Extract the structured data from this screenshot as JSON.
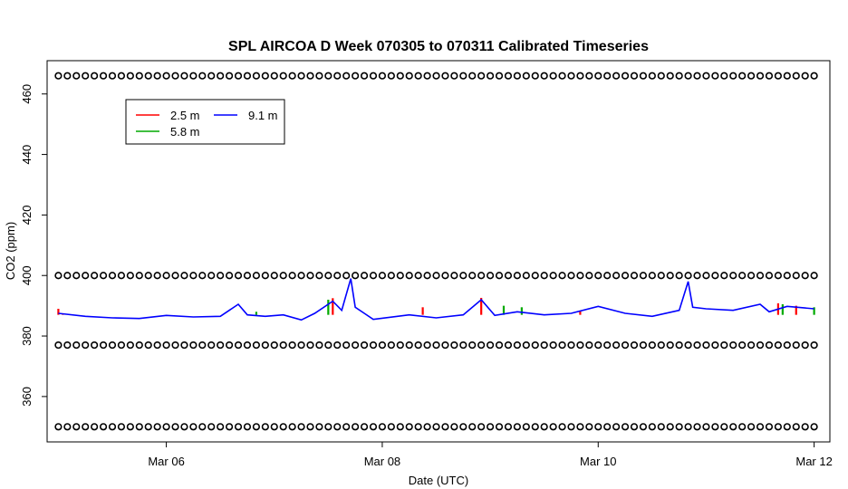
{
  "chart_data": {
    "type": "line",
    "title": "SPL AIRCOA D  Week 070305 to 070311  Calibrated Timeseries",
    "xlabel": "Date (UTC)",
    "ylabel": "CO2 (ppm)",
    "xlim": [
      "2007-03-04T21:30",
      "2007-03-12T03:30"
    ],
    "ylim": [
      345,
      471
    ],
    "xticks": [
      {
        "t": "2007-03-06T00:00",
        "label": "Mar 06"
      },
      {
        "t": "2007-03-08T00:00",
        "label": "Mar 08"
      },
      {
        "t": "2007-03-10T00:00",
        "label": "Mar 10"
      },
      {
        "t": "2007-03-12T00:00",
        "label": "Mar 12"
      }
    ],
    "yticks": [
      360,
      380,
      400,
      420,
      440,
      460
    ],
    "legend": {
      "position": "top-left",
      "entries": [
        {
          "name": "2.5 m",
          "color": "#ff0000"
        },
        {
          "name": "5.8 m",
          "color": "#00aa00"
        },
        {
          "name": "9.1 m",
          "color": "#0000ff"
        }
      ]
    },
    "series": [
      {
        "name": "2.5 m",
        "color": "#ff0000",
        "points": [
          [
            "2007-03-05T00:00",
            389.0
          ],
          [
            "2007-03-05T01:00",
            387.4
          ],
          [
            "2007-03-07T13:00",
            392.5
          ],
          [
            "2007-03-08T09:00",
            389.5
          ],
          [
            "2007-03-08T22:00",
            392.6
          ],
          [
            "2007-03-09T20:00",
            388.2
          ],
          [
            "2007-03-11T16:00",
            390.8
          ],
          [
            "2007-03-11T20:00",
            390.0
          ]
        ]
      },
      {
        "name": "5.8 m",
        "color": "#00aa00",
        "points": [
          [
            "2007-03-06T20:00",
            388.0
          ],
          [
            "2007-03-07T12:00",
            392.0
          ],
          [
            "2007-03-09T03:00",
            390.0
          ],
          [
            "2007-03-09T07:00",
            389.5
          ],
          [
            "2007-03-11T17:00",
            390.5
          ],
          [
            "2007-03-12T00:00",
            389.5
          ]
        ]
      },
      {
        "name": "9.1 m",
        "color": "#0000ff",
        "points": [
          [
            "2007-03-05T00:00",
            387.5
          ],
          [
            "2007-03-05T06:00",
            386.5
          ],
          [
            "2007-03-05T12:00",
            386.0
          ],
          [
            "2007-03-05T18:00",
            385.8
          ],
          [
            "2007-03-06T00:00",
            386.8
          ],
          [
            "2007-03-06T06:00",
            386.3
          ],
          [
            "2007-03-06T12:00",
            386.5
          ],
          [
            "2007-03-06T16:00",
            390.5
          ],
          [
            "2007-03-06T18:00",
            387.0
          ],
          [
            "2007-03-06T22:00",
            386.5
          ],
          [
            "2007-03-07T02:00",
            387.0
          ],
          [
            "2007-03-07T06:00",
            385.3
          ],
          [
            "2007-03-07T09:00",
            387.5
          ],
          [
            "2007-03-07T13:00",
            391.5
          ],
          [
            "2007-03-07T15:00",
            388.5
          ],
          [
            "2007-03-07T17:00",
            399.0
          ],
          [
            "2007-03-07T18:00",
            389.5
          ],
          [
            "2007-03-07T20:00",
            387.5
          ],
          [
            "2007-03-07T22:00",
            385.5
          ],
          [
            "2007-03-08T06:00",
            387.0
          ],
          [
            "2007-03-08T12:00",
            386.0
          ],
          [
            "2007-03-08T18:00",
            387.0
          ],
          [
            "2007-03-08T22:00",
            392.0
          ],
          [
            "2007-03-09T01:00",
            386.8
          ],
          [
            "2007-03-09T06:00",
            388.0
          ],
          [
            "2007-03-09T12:00",
            387.0
          ],
          [
            "2007-03-09T18:00",
            387.5
          ],
          [
            "2007-03-10T00:00",
            389.8
          ],
          [
            "2007-03-10T06:00",
            387.5
          ],
          [
            "2007-03-10T12:00",
            386.5
          ],
          [
            "2007-03-10T18:00",
            388.5
          ],
          [
            "2007-03-10T20:00",
            398.0
          ],
          [
            "2007-03-10T21:00",
            389.5
          ],
          [
            "2007-03-11T00:00",
            389.0
          ],
          [
            "2007-03-11T06:00",
            388.5
          ],
          [
            "2007-03-11T12:00",
            390.5
          ],
          [
            "2007-03-11T14:00",
            388.0
          ],
          [
            "2007-03-11T18:00",
            389.8
          ],
          [
            "2007-03-12T00:00",
            389.0
          ]
        ]
      },
      {
        "name": "",
        "color": "#000000",
        "marker": "circle",
        "x_start": "2007-03-05T00:00",
        "x_end": "2007-03-12T00:00",
        "step_hours": 2,
        "y": 466
      },
      {
        "name": "",
        "color": "#000000",
        "marker": "circle",
        "x_start": "2007-03-05T00:00",
        "x_end": "2007-03-12T00:00",
        "step_hours": 2,
        "y": 400
      },
      {
        "name": "",
        "color": "#000000",
        "marker": "circle",
        "x_start": "2007-03-05T00:00",
        "x_end": "2007-03-12T00:00",
        "step_hours": 2,
        "y": 377
      },
      {
        "name": "",
        "color": "#000000",
        "marker": "circle",
        "x_start": "2007-03-05T00:00",
        "x_end": "2007-03-12T00:00",
        "step_hours": 2,
        "y": 350
      }
    ],
    "grid": false
  }
}
